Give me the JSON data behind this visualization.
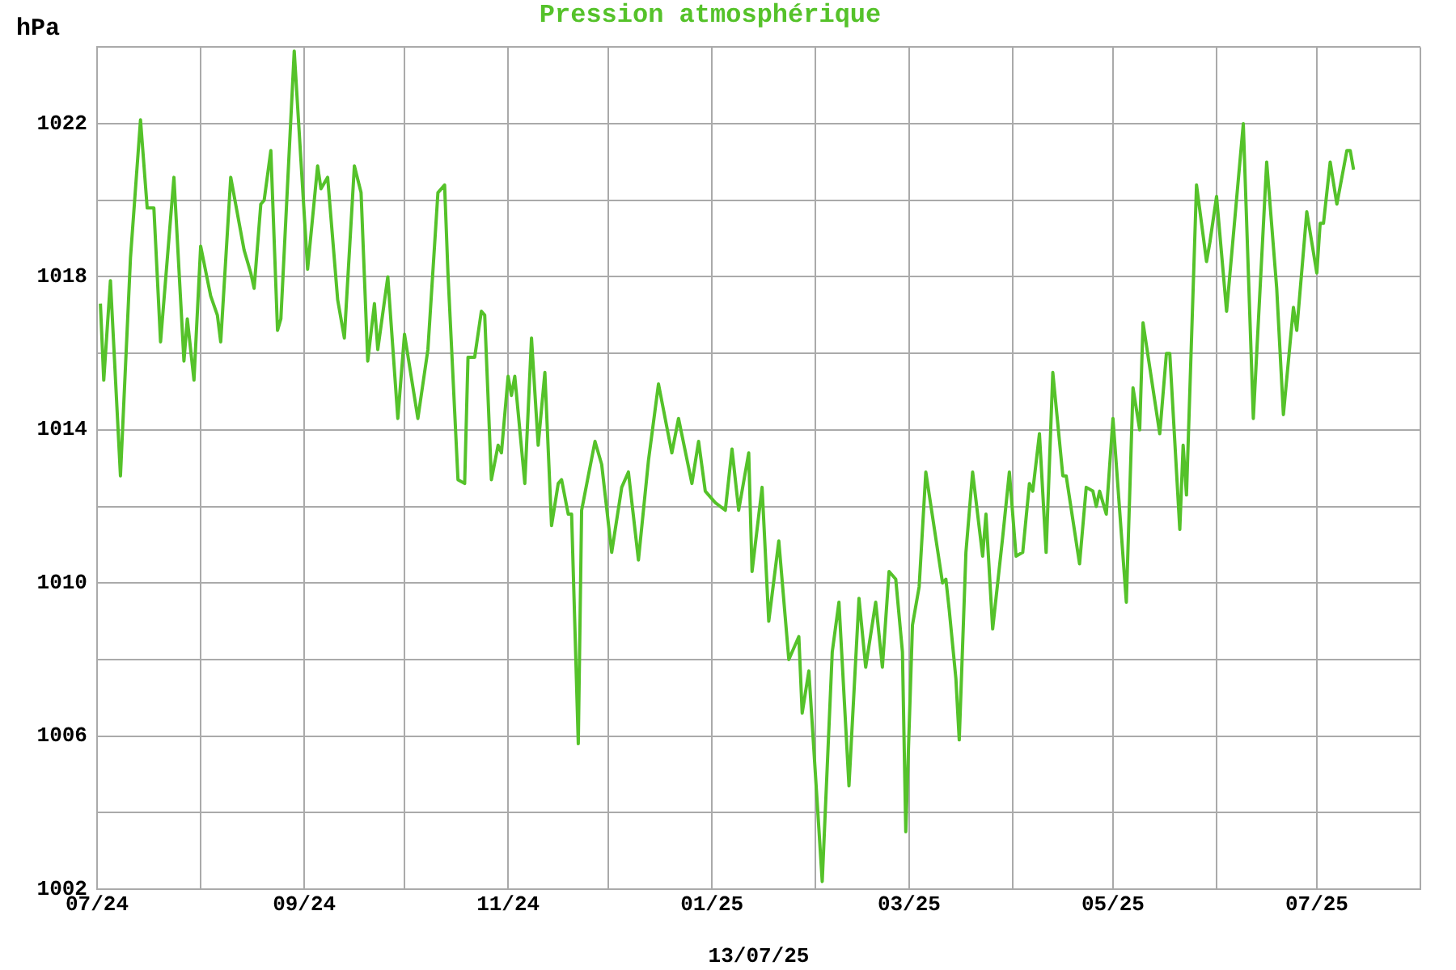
{
  "chart_data": {
    "type": "line",
    "title": "Pression atmosphérique",
    "ylabel": "hPa",
    "annotations": [
      "13/07/25"
    ],
    "x": [
      "2024-07-02",
      "2024-07-03",
      "2024-07-05",
      "2024-07-08",
      "2024-07-11",
      "2024-07-14",
      "2024-07-16",
      "2024-07-18",
      "2024-07-20",
      "2024-07-24",
      "2024-07-27",
      "2024-07-28",
      "2024-07-30",
      "2024-08-01",
      "2024-08-04",
      "2024-08-06",
      "2024-08-07",
      "2024-08-10",
      "2024-08-14",
      "2024-08-16",
      "2024-08-17",
      "2024-08-19",
      "2024-08-20",
      "2024-08-22",
      "2024-08-24",
      "2024-08-25",
      "2024-08-29",
      "2024-09-02",
      "2024-09-05",
      "2024-09-06",
      "2024-09-08",
      "2024-09-11",
      "2024-09-13",
      "2024-09-16",
      "2024-09-18",
      "2024-09-20",
      "2024-09-22",
      "2024-09-23",
      "2024-09-26",
      "2024-09-29",
      "2024-10-01",
      "2024-10-05",
      "2024-10-08",
      "2024-10-11",
      "2024-10-13",
      "2024-10-14",
      "2024-10-17",
      "2024-10-19",
      "2024-10-20",
      "2024-10-22",
      "2024-10-24",
      "2024-10-25",
      "2024-10-27",
      "2024-10-29",
      "2024-10-30",
      "2024-11-01",
      "2024-11-02",
      "2024-11-03",
      "2024-11-06",
      "2024-11-08",
      "2024-11-10",
      "2024-11-12",
      "2024-11-14",
      "2024-11-16",
      "2024-11-17",
      "2024-11-19",
      "2024-11-20",
      "2024-11-22",
      "2024-11-23",
      "2024-11-25",
      "2024-11-27",
      "2024-11-29",
      "2024-12-02",
      "2024-12-05",
      "2024-12-07",
      "2024-12-10",
      "2024-12-13",
      "2024-12-16",
      "2024-12-20",
      "2024-12-22",
      "2024-12-26",
      "2024-12-28",
      "2024-12-30",
      "2025-01-02",
      "2025-01-05",
      "2025-01-07",
      "2025-01-09",
      "2025-01-12",
      "2025-01-13",
      "2025-01-16",
      "2025-01-18",
      "2025-01-21",
      "2025-01-24",
      "2025-01-27",
      "2025-01-28",
      "2025-01-30",
      "2025-02-03",
      "2025-02-06",
      "2025-02-08",
      "2025-02-11",
      "2025-02-14",
      "2025-02-16",
      "2025-02-19",
      "2025-02-21",
      "2025-02-23",
      "2025-02-25",
      "2025-02-27",
      "2025-02-28",
      "2025-03-02",
      "2025-03-04",
      "2025-03-06",
      "2025-03-11",
      "2025-03-12",
      "2025-03-13",
      "2025-03-15",
      "2025-03-16",
      "2025-03-18",
      "2025-03-20",
      "2025-03-23",
      "2025-03-24",
      "2025-03-26",
      "2025-03-29",
      "2025-03-31",
      "2025-04-02",
      "2025-04-04",
      "2025-04-06",
      "2025-04-07",
      "2025-04-09",
      "2025-04-11",
      "2025-04-13",
      "2025-04-16",
      "2025-04-17",
      "2025-04-21",
      "2025-04-23",
      "2025-04-25",
      "2025-04-26",
      "2025-04-27",
      "2025-04-29",
      "2025-05-01",
      "2025-05-05",
      "2025-05-07",
      "2025-05-09",
      "2025-05-10",
      "2025-05-15",
      "2025-05-17",
      "2025-05-18",
      "2025-05-21",
      "2025-05-22",
      "2025-05-23",
      "2025-05-26",
      "2025-05-29",
      "2025-05-30",
      "2025-06-01",
      "2025-06-04",
      "2025-06-09",
      "2025-06-12",
      "2025-06-16",
      "2025-06-19",
      "2025-06-21",
      "2025-06-24",
      "2025-06-25",
      "2025-06-28",
      "2025-07-01",
      "2025-07-02",
      "2025-07-03",
      "2025-07-05",
      "2025-07-07",
      "2025-07-10",
      "2025-07-11",
      "2025-07-12"
    ],
    "values": [
      1017.3,
      1015.3,
      1017.9,
      1012.8,
      1018.5,
      1022.1,
      1019.8,
      1019.8,
      1016.3,
      1020.6,
      1015.8,
      1016.9,
      1015.3,
      1018.8,
      1017.5,
      1017.0,
      1016.3,
      1020.6,
      1018.7,
      1018.1,
      1017.7,
      1019.9,
      1020.0,
      1021.3,
      1016.6,
      1016.9,
      1023.9,
      1018.2,
      1020.9,
      1020.3,
      1020.6,
      1017.4,
      1016.4,
      1020.9,
      1020.2,
      1015.8,
      1017.3,
      1016.1,
      1018.0,
      1014.3,
      1016.5,
      1014.3,
      1016.1,
      1020.2,
      1020.4,
      1018.1,
      1012.7,
      1012.6,
      1015.9,
      1015.9,
      1017.1,
      1017.0,
      1012.7,
      1013.6,
      1013.4,
      1015.4,
      1014.9,
      1015.4,
      1012.6,
      1016.4,
      1013.6,
      1015.5,
      1011.5,
      1012.6,
      1012.7,
      1011.8,
      1011.8,
      1005.8,
      1011.9,
      1012.8,
      1013.7,
      1013.1,
      1010.8,
      1012.5,
      1012.9,
      1010.6,
      1013.2,
      1015.2,
      1013.4,
      1014.3,
      1012.6,
      1013.7,
      1012.4,
      1012.1,
      1011.9,
      1013.5,
      1011.9,
      1013.4,
      1010.3,
      1012.5,
      1009.0,
      1011.1,
      1008.0,
      1008.6,
      1006.6,
      1007.7,
      1002.2,
      1008.2,
      1009.5,
      1004.7,
      1009.6,
      1007.8,
      1009.5,
      1007.8,
      1010.3,
      1010.1,
      1008.2,
      1003.5,
      1008.9,
      1009.9,
      1012.9,
      1010.0,
      1010.1,
      1009.3,
      1007.5,
      1005.9,
      1010.8,
      1012.9,
      1010.7,
      1011.8,
      1008.8,
      1011.2,
      1012.9,
      1010.7,
      1010.8,
      1012.6,
      1012.4,
      1013.9,
      1010.8,
      1015.5,
      1012.8,
      1012.8,
      1010.5,
      1012.5,
      1012.4,
      1012.0,
      1012.4,
      1011.8,
      1014.3,
      1009.5,
      1015.1,
      1014.0,
      1016.8,
      1013.9,
      1016.0,
      1016.0,
      1011.4,
      1013.6,
      1012.3,
      1020.4,
      1018.4,
      1018.9,
      1020.1,
      1017.1,
      1022.0,
      1014.3,
      1021.0,
      1017.7,
      1014.4,
      1017.2,
      1016.6,
      1019.7,
      1018.1,
      1019.4,
      1019.4,
      1021.0,
      1019.9,
      1021.3,
      1021.3,
      1020.8
    ],
    "color": "#55c22a",
    "line_style": "solid",
    "marker": "none",
    "grid": true,
    "legend": false,
    "xlim": [
      "2024-07-01",
      "2025-08-01"
    ],
    "xticks": [
      {
        "value": "2024-07-01",
        "label": "07/24"
      },
      {
        "value": "2024-08-01",
        "label": null
      },
      {
        "value": "2024-09-01",
        "label": "09/24"
      },
      {
        "value": "2024-10-01",
        "label": null
      },
      {
        "value": "2024-11-01",
        "label": "11/24"
      },
      {
        "value": "2024-12-01",
        "label": null
      },
      {
        "value": "2025-01-01",
        "label": "01/25"
      },
      {
        "value": "2025-02-01",
        "label": null
      },
      {
        "value": "2025-03-01",
        "label": "03/25"
      },
      {
        "value": "2025-04-01",
        "label": null
      },
      {
        "value": "2025-05-01",
        "label": "05/25"
      },
      {
        "value": "2025-06-01",
        "label": null
      },
      {
        "value": "2025-07-01",
        "label": "07/25"
      },
      {
        "value": "2025-08-01",
        "label": null
      }
    ],
    "ylim": [
      1002,
      1024
    ],
    "yticks": [
      1002,
      {
        "value": 1004,
        "label": null
      },
      1006,
      {
        "value": 1008,
        "label": null
      },
      1010,
      {
        "value": 1012,
        "label": null
      },
      1014,
      {
        "value": 1016,
        "label": null
      },
      1018,
      {
        "value": 1020,
        "label": null
      },
      1022,
      {
        "value": 1024,
        "label": null
      }
    ]
  }
}
